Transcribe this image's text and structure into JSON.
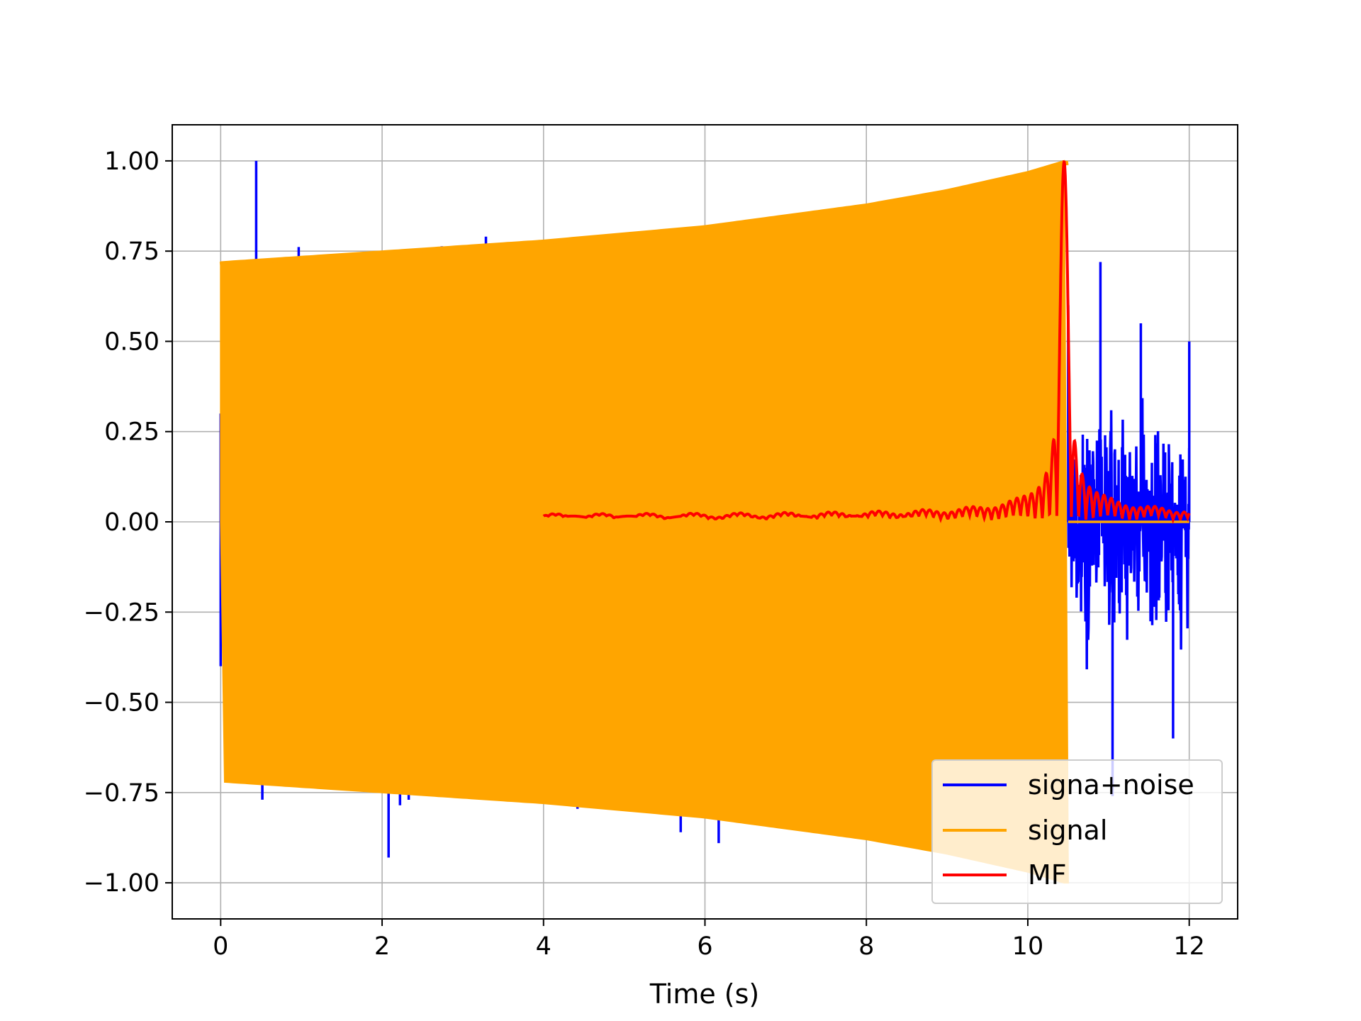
{
  "chart_data": {
    "type": "line",
    "title": "",
    "xlabel": "Time (s)",
    "ylabel": "",
    "xlim": [
      -0.6,
      12.6
    ],
    "ylim": [
      -1.1,
      1.1
    ],
    "xticks": [
      0,
      2,
      4,
      6,
      8,
      10,
      12
    ],
    "xtick_labels": [
      "0",
      "2",
      "4",
      "6",
      "8",
      "10",
      "12"
    ],
    "yticks": [
      1.0,
      0.75,
      0.5,
      0.25,
      0.0,
      -0.25,
      -0.5,
      -0.75,
      -1.0
    ],
    "ytick_labels": [
      "1.00",
      "0.75",
      "0.50",
      "0.25",
      "0.00",
      "−0.25",
      "−0.50",
      "−0.75",
      "−1.00"
    ],
    "grid": true,
    "legend_position": "bottom-right",
    "series": [
      {
        "name": "signa+noise",
        "color": "#0000ff",
        "description_points": [
          {
            "x": 0.0,
            "y": 0.3
          },
          {
            "x": 0.44,
            "y": 1.0
          },
          {
            "x": 2.08,
            "y": -0.93
          },
          {
            "x": 2.33,
            "y": -0.77
          },
          {
            "x": 5.7,
            "y": -0.86
          },
          {
            "x": 6.17,
            "y": -0.89
          },
          {
            "x": 10.5,
            "y": 0.6
          },
          {
            "x": 10.9,
            "y": 0.72
          },
          {
            "x": 11.05,
            "y": -0.76
          },
          {
            "x": 11.4,
            "y": 0.55
          },
          {
            "x": 11.8,
            "y": -0.6
          },
          {
            "x": 12.0,
            "y": 0.5
          }
        ]
      },
      {
        "name": "signal",
        "color": "#ffa500",
        "envelope": [
          {
            "x": 0.0,
            "y": 0.72
          },
          {
            "x": 2.0,
            "y": 0.75
          },
          {
            "x": 4.0,
            "y": 0.78
          },
          {
            "x": 6.0,
            "y": 0.82
          },
          {
            "x": 8.0,
            "y": 0.88
          },
          {
            "x": 9.0,
            "y": 0.92
          },
          {
            "x": 10.0,
            "y": 0.97
          },
          {
            "x": 10.45,
            "y": 1.0
          }
        ],
        "end_time": 10.5
      },
      {
        "name": "MF",
        "color": "#ff0000",
        "start_time": 4.0,
        "end_time": 12.0,
        "peak": {
          "x": 10.45,
          "y": 1.0
        }
      }
    ]
  }
}
